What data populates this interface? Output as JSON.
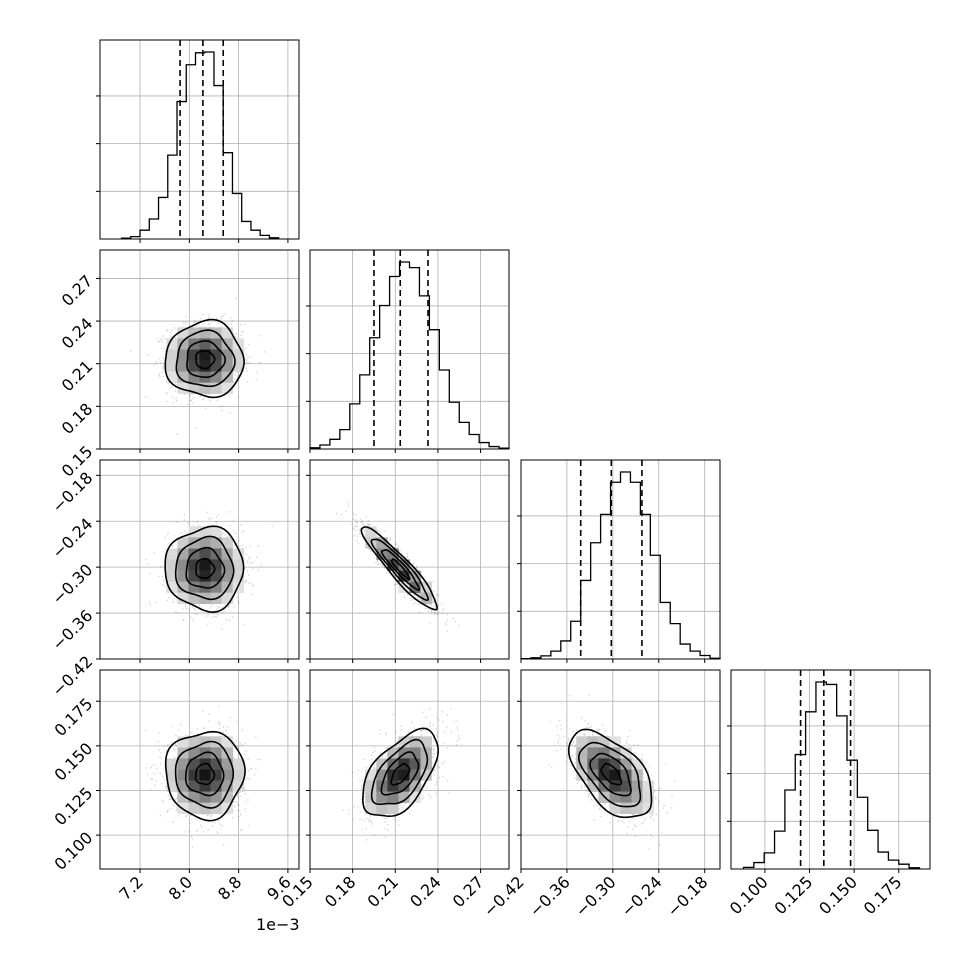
{
  "chart_data": {
    "type": "corner",
    "axis_offset_label": "1e−3",
    "parameters": [
      {
        "ticks": [
          7.2,
          8.0,
          8.8,
          9.6
        ],
        "tick_labels": [
          "7.2",
          "8.0",
          "8.8",
          "9.6"
        ],
        "range": [
          6.55,
          9.78
        ],
        "quantiles": [
          7.85,
          8.22,
          8.55
        ],
        "hist_bins": [
          6.9,
          7.05,
          7.2,
          7.35,
          7.5,
          7.65,
          7.8,
          7.95,
          8.1,
          8.25,
          8.4,
          8.55,
          8.7,
          8.85,
          9.0,
          9.15,
          9.3,
          9.45
        ],
        "hist_counts": [
          10,
          30,
          110,
          250,
          520,
          1050,
          1720,
          2180,
          2330,
          2340,
          1920,
          1080,
          570,
          220,
          110,
          45,
          15
        ]
      },
      {
        "ticks": [
          0.15,
          0.18,
          0.21,
          0.24,
          0.27
        ],
        "tick_labels": [
          "0.15",
          "0.18",
          "0.21",
          "0.24",
          "0.27"
        ],
        "range": [
          0.15,
          0.29
        ],
        "quantiles": [
          0.195,
          0.2135,
          0.233
        ],
        "hist_bins": [
          0.15,
          0.157,
          0.164,
          0.171,
          0.178,
          0.185,
          0.192,
          0.199,
          0.206,
          0.213,
          0.22,
          0.227,
          0.234,
          0.241,
          0.248,
          0.255,
          0.262,
          0.269,
          0.276,
          0.283,
          0.29
        ],
        "hist_counts": [
          15,
          50,
          120,
          240,
          560,
          920,
          1380,
          1780,
          2140,
          2320,
          2250,
          1900,
          1480,
          980,
          580,
          330,
          180,
          80,
          30,
          10
        ]
      },
      {
        "ticks": [
          -0.42,
          -0.36,
          -0.3,
          -0.24,
          -0.18
        ],
        "tick_labels": [
          "−0.42",
          "−0.36",
          "−0.30",
          "−0.24",
          "−0.18"
        ],
        "range": [
          -0.42,
          -0.16
        ],
        "quantiles": [
          -0.342,
          -0.302,
          -0.262
        ],
        "hist_bins": [
          -0.42,
          -0.407,
          -0.394,
          -0.381,
          -0.368,
          -0.355,
          -0.342,
          -0.329,
          -0.316,
          -0.303,
          -0.29,
          -0.277,
          -0.264,
          -0.251,
          -0.238,
          -0.225,
          -0.212,
          -0.199,
          -0.186,
          -0.173,
          -0.16
        ],
        "hist_counts": [
          5,
          15,
          40,
          100,
          230,
          480,
          1000,
          1480,
          1840,
          2250,
          2380,
          2250,
          1840,
          1320,
          720,
          450,
          190,
          100,
          45,
          10
        ]
      },
      {
        "ticks": [
          0.1,
          0.125,
          0.15,
          0.175
        ],
        "tick_labels": [
          "0.100",
          "0.125",
          "0.150",
          "0.175"
        ],
        "range": [
          0.081,
          0.1925
        ],
        "quantiles": [
          0.12,
          0.133,
          0.148
        ],
        "hist_bins": [
          0.088,
          0.0938,
          0.0996,
          0.1054,
          0.1112,
          0.117,
          0.1228,
          0.1286,
          0.1344,
          0.1402,
          0.146,
          0.1518,
          0.1576,
          0.1634,
          0.1692,
          0.175,
          0.1808,
          0.1866
        ],
        "hist_counts": [
          20,
          80,
          200,
          470,
          980,
          1420,
          1950,
          2320,
          2290,
          1900,
          1350,
          890,
          480,
          210,
          110,
          60,
          15
        ]
      }
    ],
    "pairs": [
      {
        "row": 1,
        "col": 0,
        "cx": 8.25,
        "cy": 0.213,
        "rx": 0.3,
        "ry": 0.0125,
        "rho": 0.0
      },
      {
        "row": 2,
        "col": 0,
        "cx": 8.25,
        "cy": -0.302,
        "rx": 0.3,
        "ry": 0.0255,
        "rho": 0.0
      },
      {
        "row": 2,
        "col": 1,
        "cx": 0.2135,
        "cy": -0.302,
        "rx": 0.0125,
        "ry": 0.0255,
        "rho": -0.93
      },
      {
        "row": 3,
        "col": 0,
        "cx": 8.25,
        "cy": 0.134,
        "rx": 0.3,
        "ry": 0.0115,
        "rho": 0.0
      },
      {
        "row": 3,
        "col": 1,
        "cx": 0.2135,
        "cy": 0.134,
        "rx": 0.0125,
        "ry": 0.0115,
        "rho": 0.55
      },
      {
        "row": 3,
        "col": 2,
        "cx": -0.302,
        "cy": 0.134,
        "rx": 0.0255,
        "ry": 0.0115,
        "rho": -0.55
      }
    ],
    "contour_levels_sigma": [
      0.5,
      1.0,
      1.5,
      2.0
    ],
    "grid": true
  }
}
